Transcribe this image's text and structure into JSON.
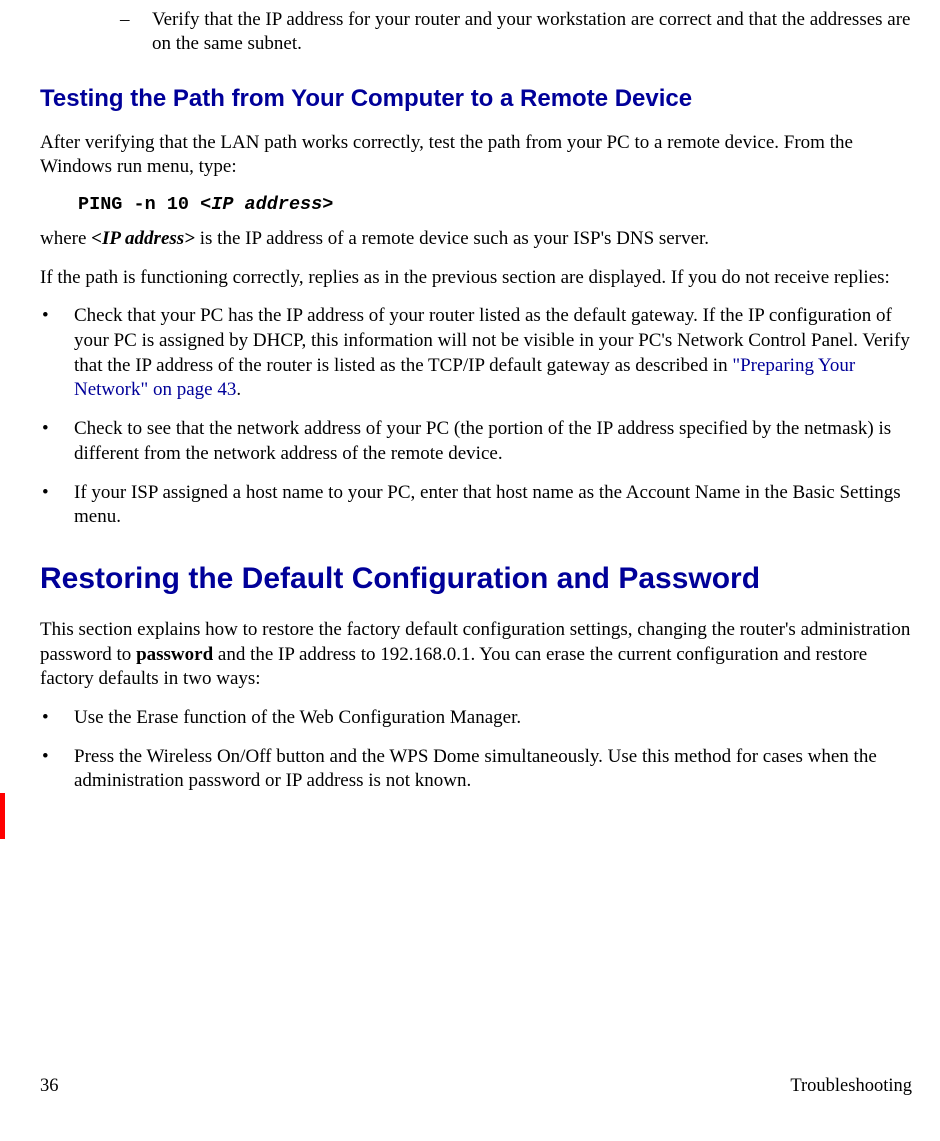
{
  "colors": {
    "heading": "#000099",
    "link": "#000099",
    "revisionBar": "#ff0000",
    "text": "#000000",
    "background": "#ffffff"
  },
  "typography": {
    "body_font": "Times New Roman",
    "body_size_pt": 14,
    "heading_font": "Arial",
    "h2_size_pt": 22,
    "h3_size_pt": 18,
    "code_font": "Courier New"
  },
  "subBullet": {
    "mark": "–",
    "text": "Verify that the IP address for your router and your workstation are correct and that the addresses are on the same subnet."
  },
  "section1": {
    "heading": "Testing the Path from Your Computer to a Remote Device",
    "para1": "After verifying that the LAN path works correctly, test the path from your PC to a remote device. From the Windows run menu, type:",
    "cmd_prefix": "PING -n 10 ",
    "cmd_arg": "<IP address>",
    "para2_pre": "where ",
    "para2_bold": "<IP address>",
    "para2_post": " is the IP address of a remote device such as your ISP's DNS server.",
    "para3": "If the path is functioning correctly, replies as in the previous section are displayed. If you do not receive replies:",
    "bullets": {
      "b1_pre": "Check that your PC has the IP address of your router listed as the default gateway. If the IP configuration of your PC is assigned by DHCP, this information will not be visible in your PC's Network Control Panel. Verify that the IP address of the router is listed as the TCP/IP default gateway as described in ",
      "b1_link": "\"Preparing Your Network\" on page 43",
      "b1_post": ".",
      "b2": "Check to see that the network address of your PC (the portion of the IP address specified by the netmask) is different from the network address of the remote device.",
      "b3": "If your ISP assigned a host name to your PC, enter that host name as the Account Name in the Basic Settings menu."
    }
  },
  "section2": {
    "heading": "Restoring the Default Configuration and Password",
    "para1_pre": "This section explains how to restore the factory default configuration settings, changing the router's administration password to ",
    "para1_bold": "password",
    "para1_post": " and the IP address to 192.168.0.1. You can erase the current configuration and restore factory defaults in two ways:",
    "bullets": {
      "b1": "Use the Erase function of the Web Configuration Manager.",
      "b2": "Press the Wireless On/Off button and the WPS Dome simultaneously. Use this method for cases when the administration password or IP address is not known."
    }
  },
  "bullet_char": "•",
  "footer": {
    "page": "36",
    "section": "Troubleshooting"
  }
}
